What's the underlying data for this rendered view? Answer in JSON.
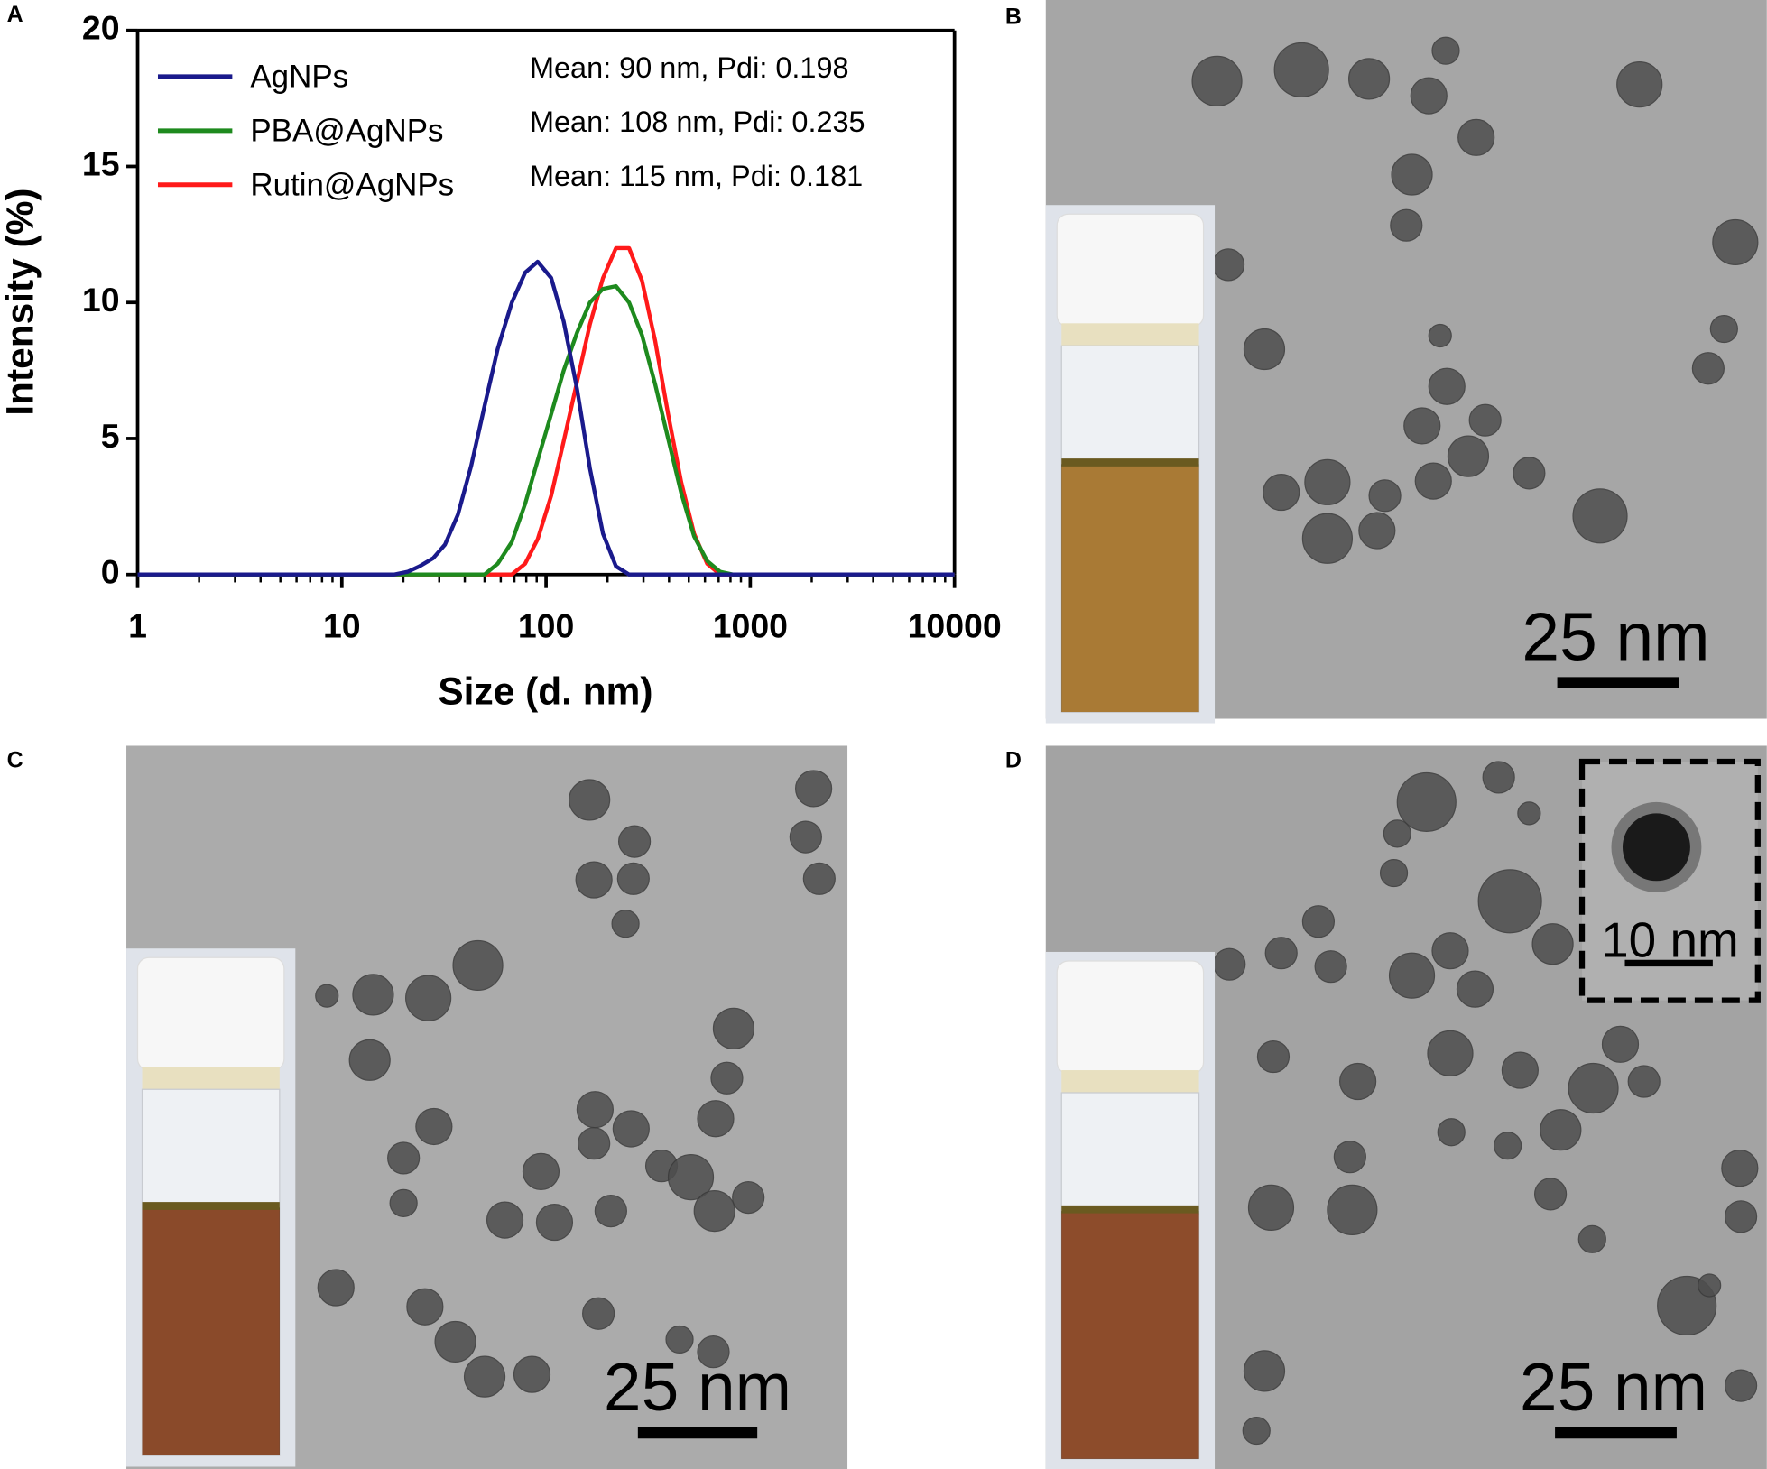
{
  "chart_data": {
    "type": "line",
    "xlabel": "Size (d. nm)",
    "ylabel": "Intensity (%)",
    "xscale": "log",
    "xlim": [
      1,
      10000
    ],
    "xticks": [
      1,
      10,
      100,
      1000,
      10000
    ],
    "ylim": [
      0,
      20
    ],
    "yticks": [
      0,
      5,
      10,
      15,
      20
    ],
    "x": [
      1,
      18,
      21,
      24,
      28,
      32,
      37,
      43,
      50,
      58,
      68,
      79,
      91,
      106,
      122,
      142,
      164,
      190,
      220,
      255,
      295,
      342,
      396,
      459,
      531,
      615,
      712,
      825,
      955,
      10000
    ],
    "series": [
      {
        "name": "Rutin@AgNPs",
        "color": "#ff1a1a",
        "values": [
          0,
          0,
          0,
          0,
          0,
          0,
          0,
          0,
          0,
          0,
          0,
          0.4,
          1.3,
          2.9,
          4.9,
          7.1,
          9.2,
          10.9,
          12.0,
          12.0,
          10.8,
          8.6,
          5.9,
          3.4,
          1.5,
          0.4,
          0,
          0,
          0,
          0
        ]
      },
      {
        "name": "PBA@AgNPs",
        "color": "#1e8a1e",
        "values": [
          0,
          0,
          0,
          0,
          0,
          0,
          0,
          0,
          0,
          0.4,
          1.2,
          2.6,
          4.2,
          5.9,
          7.5,
          8.9,
          10.0,
          10.5,
          10.6,
          10.0,
          8.8,
          7.0,
          5.0,
          3.0,
          1.4,
          0.5,
          0.1,
          0,
          0,
          0
        ]
      },
      {
        "name": "AgNPs",
        "color": "#1a1a8c",
        "values": [
          0,
          0,
          0.1,
          0.3,
          0.6,
          1.1,
          2.2,
          4.0,
          6.2,
          8.3,
          10.0,
          11.1,
          11.5,
          10.9,
          9.3,
          6.8,
          3.9,
          1.5,
          0.3,
          0,
          0,
          0,
          0,
          0,
          0,
          0,
          0,
          0,
          0,
          0
        ]
      }
    ],
    "legend_order": [
      "AgNPs",
      "PBA@AgNPs",
      "Rutin@AgNPs"
    ],
    "annotations": [
      "Mean: 90 nm, Pdi: 0.198",
      "Mean: 108 nm, Pdi: 0.235",
      "Mean: 115 nm, Pdi: 0.181"
    ]
  },
  "panels": [
    {
      "label": "A"
    },
    {
      "label": "B",
      "scale_bar": "25 nm"
    },
    {
      "label": "C",
      "scale_bar": "25 nm"
    },
    {
      "label": "D",
      "scale_bar": "25 nm",
      "inset_scale_bar": "10 nm"
    }
  ]
}
